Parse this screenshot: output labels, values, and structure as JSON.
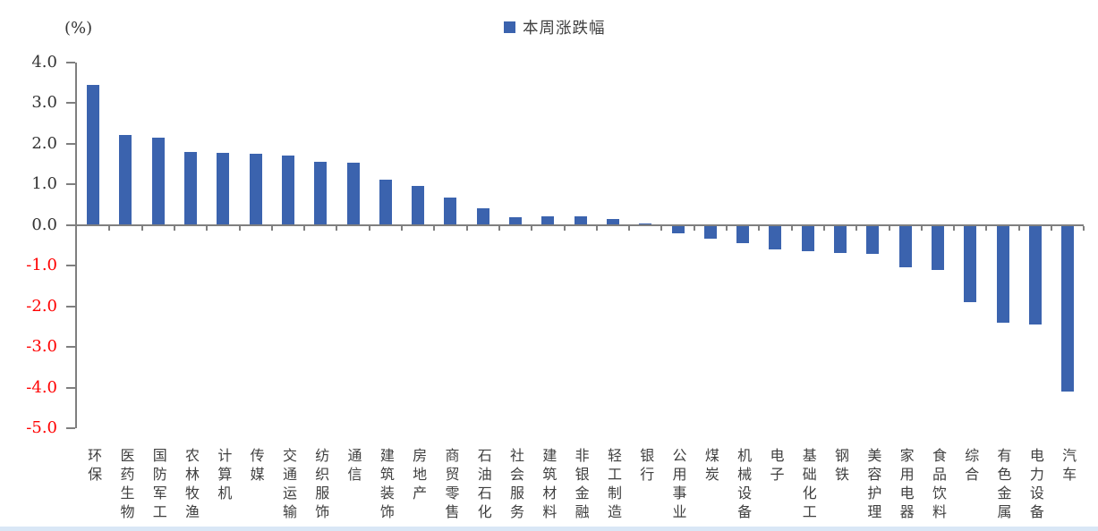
{
  "chart_data": {
    "type": "bar",
    "title": "",
    "unit_label": "(%)",
    "legend": [
      "本周涨跌幅"
    ],
    "legend_position": "top-center",
    "grid": false,
    "ylim": [
      -5.0,
      4.0
    ],
    "ytick_values": [
      4,
      3,
      2,
      1,
      0,
      -1,
      -2,
      -3,
      -4,
      -5
    ],
    "ytick_labels": [
      "4.0",
      "3.0",
      "2.0",
      "1.0",
      "0.0",
      "-1.0",
      "-2.0",
      "-3.0",
      "-4.0",
      "-5.0"
    ],
    "categories": [
      "环保",
      "医药生物",
      "国防军工",
      "农林牧渔",
      "计算机",
      "传媒",
      "交通运输",
      "纺织服饰",
      "通信",
      "建筑装饰",
      "房地产",
      "商贸零售",
      "石油石化",
      "社会服务",
      "建筑材料",
      "非银金融",
      "轻工制造",
      "银行",
      "公用事业",
      "煤炭",
      "机械设备",
      "电子",
      "基础化工",
      "钢铁",
      "美容护理",
      "家用电器",
      "食品饮料",
      "综合",
      "有色金属",
      "电力设备",
      "汽车"
    ],
    "values": [
      3.45,
      2.2,
      2.15,
      1.8,
      1.78,
      1.75,
      1.7,
      1.55,
      1.52,
      1.12,
      0.95,
      0.68,
      0.4,
      0.19,
      0.2,
      0.2,
      0.15,
      0.04,
      -0.2,
      -0.35,
      -0.45,
      -0.6,
      -0.65,
      -0.7,
      -0.72,
      -1.05,
      -1.1,
      -1.9,
      -2.4,
      -2.45,
      -4.1
    ],
    "colors": {
      "bar": "#3B63AE",
      "axis": "#7F7F7F",
      "positive_tick_label": "#333333",
      "negative_tick_label": "#FF0000",
      "category_label": "#404040",
      "bottom_strip": "#D9E7F6"
    }
  }
}
